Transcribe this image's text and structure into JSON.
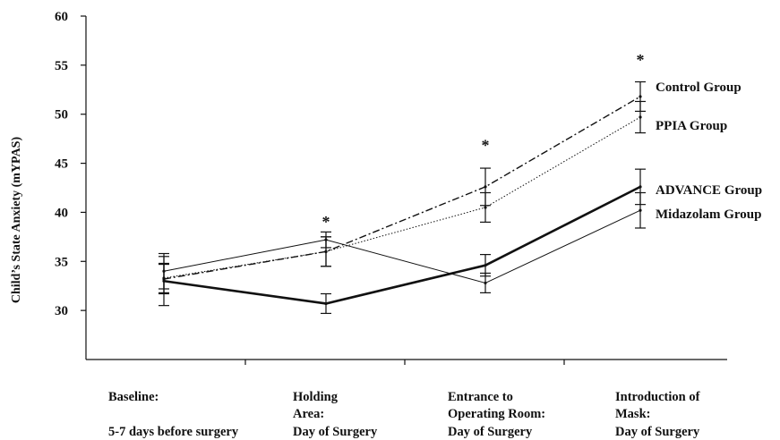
{
  "chart_data": {
    "type": "line",
    "ylabel": "Child’s State Anxiety (mYPAS)",
    "xlabel": "",
    "ylim": [
      25,
      60
    ],
    "yticks": [
      30,
      35,
      40,
      45,
      50,
      55,
      60
    ],
    "categories": [
      [
        "Baseline:",
        "",
        "5-7 days before surgery"
      ],
      [
        "Holding",
        "Area:",
        "Day of Surgery"
      ],
      [
        "Entrance to",
        "Operating Room:",
        "Day of Surgery"
      ],
      [
        "Introduction of",
        "Mask:",
        "Day of Surgery"
      ]
    ],
    "series": [
      {
        "name": "Control Group",
        "values": [
          33.2,
          36.0,
          42.6,
          51.8
        ],
        "error": [
          1.5,
          1.5,
          1.9,
          1.5
        ],
        "style": "dashdot",
        "width": 1.4
      },
      {
        "name": "PPIA Group",
        "values": [
          33.3,
          36.0,
          40.5,
          49.7
        ],
        "error": [
          1.5,
          1.5,
          1.5,
          1.6
        ],
        "style": "dotted",
        "width": 1.0
      },
      {
        "name": "ADVANCE Group",
        "values": [
          33.0,
          30.7,
          34.6,
          42.6
        ],
        "error": [
          2.5,
          1.0,
          1.1,
          1.8
        ],
        "style": "solid",
        "width": 2.6
      },
      {
        "name": "Midazolam Group",
        "values": [
          34.0,
          37.2,
          32.8,
          40.2
        ],
        "error": [
          1.8,
          0.8,
          1.0,
          1.8
        ],
        "style": "solid",
        "width": 1.0
      }
    ],
    "significance": [
      {
        "index": 1,
        "label": "*",
        "y": 38.5
      },
      {
        "index": 2,
        "label": "*",
        "y": 46.3
      },
      {
        "index": 3,
        "label": "*",
        "y": 55.0
      }
    ],
    "grid": false,
    "legend": "inline-right"
  }
}
